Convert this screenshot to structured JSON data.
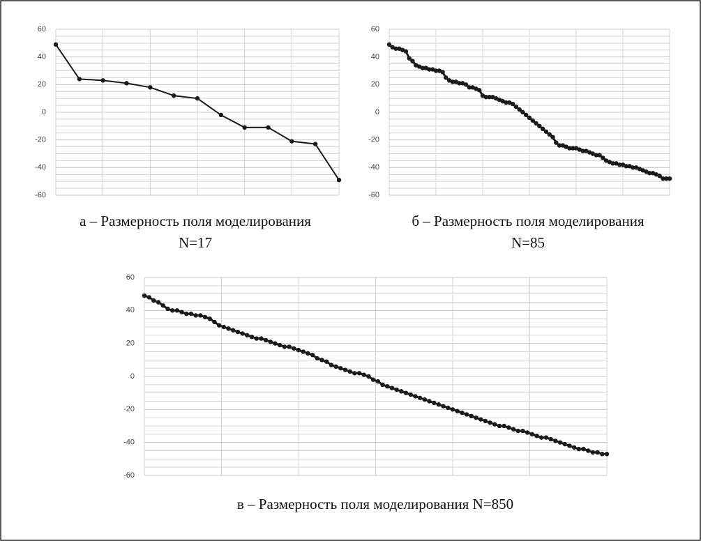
{
  "chart_data": [
    {
      "type": "line",
      "caption": [
        "а – Размерность поля моделирования",
        "N=17"
      ],
      "color": "#1a1a1a",
      "values": [
        49,
        24,
        23,
        21,
        18,
        12,
        10,
        -2,
        -11,
        -11,
        -21,
        -23,
        -49
      ],
      "ylim": [
        -60,
        60
      ],
      "yticks": [
        60,
        40,
        20,
        0,
        -20,
        -40,
        -60
      ],
      "grid": true
    },
    {
      "type": "line",
      "caption": [
        "б – Размерность поля моделирования",
        "N=85"
      ],
      "color": "#1a1a1a",
      "values": [
        49,
        47,
        46,
        46,
        45,
        44,
        39,
        37,
        34,
        33,
        32,
        32,
        31,
        31,
        30,
        30,
        29,
        25,
        23,
        22,
        22,
        21,
        21,
        20,
        18,
        18,
        17,
        16,
        12,
        11,
        11,
        11,
        10,
        9,
        8,
        7,
        7,
        6,
        4,
        2,
        0,
        -2,
        -4,
        -6,
        -8,
        -10,
        -12,
        -14,
        -16,
        -18,
        -22,
        -24,
        -24,
        -25,
        -26,
        -26,
        -26,
        -27,
        -28,
        -28,
        -29,
        -30,
        -31,
        -31,
        -33,
        -35,
        -36,
        -37,
        -37,
        -38,
        -38,
        -39,
        -39,
        -40,
        -40,
        -41,
        -42,
        -43,
        -44,
        -44,
        -45,
        -46,
        -48,
        -48,
        -48
      ],
      "ylim": [
        -60,
        60
      ],
      "yticks": [
        60,
        40,
        20,
        0,
        -20,
        -40,
        -60
      ],
      "grid": true
    },
    {
      "type": "line",
      "caption": [
        "в – Размерность поля моделирования N=850"
      ],
      "color": "#1a1a1a",
      "values": [
        49,
        48,
        46,
        45,
        43,
        41,
        40,
        40,
        39,
        38,
        38,
        37,
        37,
        36,
        35,
        33,
        31,
        30,
        29,
        28,
        27,
        26,
        25,
        24,
        23,
        23,
        22,
        21,
        20,
        19,
        18,
        18,
        17,
        16,
        15,
        14,
        13,
        11,
        10,
        9,
        7,
        6,
        5,
        4,
        3,
        2,
        2,
        1,
        0,
        -2,
        -3,
        -5,
        -6,
        -7,
        -8,
        -9,
        -10,
        -11,
        -12,
        -13,
        -14,
        -15,
        -16,
        -17,
        -18,
        -19,
        -20,
        -21,
        -22,
        -23,
        -24,
        -25,
        -26,
        -27,
        -28,
        -29,
        -30,
        -30,
        -31,
        -32,
        -33,
        -33,
        -34,
        -35,
        -36,
        -37,
        -37,
        -38,
        -39,
        -40,
        -41,
        -42,
        -43,
        -44,
        -44,
        -45,
        -46,
        -46,
        -47,
        -47
      ],
      "ylim": [
        -60,
        60
      ],
      "yticks": [
        60,
        40,
        20,
        0,
        -20,
        -40,
        -60
      ],
      "grid": true
    }
  ]
}
